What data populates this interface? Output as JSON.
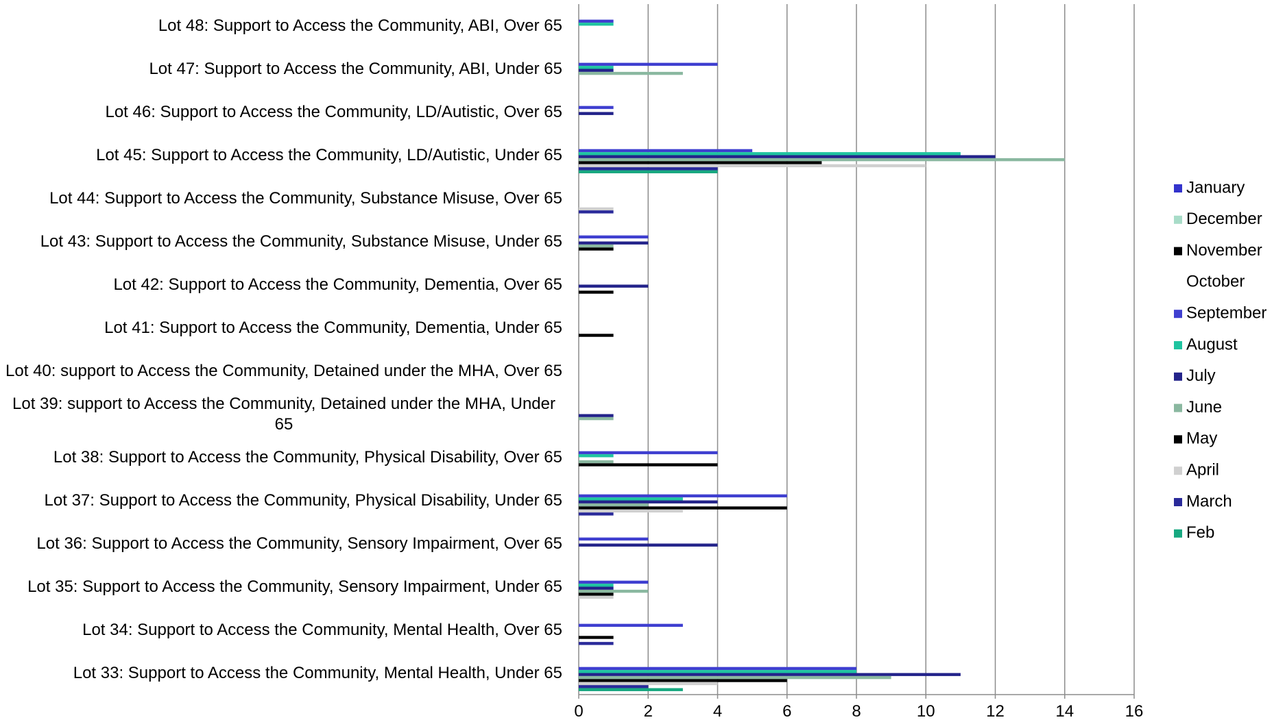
{
  "chart_data": {
    "type": "bar",
    "orientation": "horizontal",
    "categories": [
      "Lot 33: Support to Access the Community, Mental Health, Under 65",
      "Lot 34: Support to Access the Community, Mental Health, Over 65",
      "Lot 35: Support to Access the Community, Sensory Impairment, Under 65",
      "Lot 36: Support to Access the Community, Sensory Impairment, Over 65",
      "Lot 37: Support to Access the Community, Physical Disability, Under 65",
      "Lot 38: Support to Access the Community, Physical Disability, Over 65",
      "Lot 39: support to Access the Community, Detained under the MHA, Under 65",
      "Lot 40: support to Access the Community, Detained under the MHA, Over 65",
      "Lot 41: Support to Access the Community, Dementia, Under 65",
      "Lot 42: Support to Access the Community, Dementia, Over 65",
      "Lot 43: Support to Access the Community, Substance Misuse, Under 65",
      "Lot 44: Support to Access the Community, Substance Misuse, Over 65",
      "Lot 45: Support to Access the Community, LD/Autistic, Under 65",
      "Lot 46: Support to Access the Community, LD/Autistic, Over 65",
      "Lot 47: Support to Access the Community, ABI, Under 65",
      "Lot 48: Support to Access the Community, ABI, Over 65"
    ],
    "series": [
      {
        "name": "January",
        "color": "#3333cc",
        "values": [
          0,
          0,
          0,
          0,
          0,
          0,
          0,
          0,
          0,
          0,
          0,
          0,
          0,
          0,
          0,
          0
        ]
      },
      {
        "name": "December",
        "color": "#a8dcc8",
        "values": [
          0,
          0,
          0,
          0,
          0,
          0,
          0,
          0,
          0,
          0,
          0,
          0,
          0,
          0,
          0,
          0
        ]
      },
      {
        "name": "November",
        "color": "#000000",
        "values": [
          0,
          0,
          0,
          0,
          0,
          0,
          0,
          0,
          0,
          0,
          0,
          0,
          0,
          0,
          0,
          0
        ]
      },
      {
        "name": "October",
        "color": "#ffffff",
        "values": [
          0,
          0,
          0,
          0,
          0,
          0,
          0,
          0,
          0,
          0,
          0,
          0,
          0,
          0,
          0,
          0
        ]
      },
      {
        "name": "September",
        "color": "#3f3fd0",
        "values": [
          8,
          3,
          2,
          2,
          6,
          4,
          0,
          0,
          0,
          0,
          2,
          0,
          5,
          1,
          4,
          1
        ]
      },
      {
        "name": "August",
        "color": "#1fc4a0",
        "values": [
          8,
          0,
          1,
          0,
          3,
          1,
          0,
          0,
          0,
          0,
          0,
          0,
          11,
          0,
          1,
          1
        ]
      },
      {
        "name": "July",
        "color": "#23238a",
        "values": [
          11,
          0,
          1,
          4,
          4,
          0,
          1,
          0,
          0,
          2,
          2,
          0,
          12,
          1,
          1,
          0
        ]
      },
      {
        "name": "June",
        "color": "#8ab8a0",
        "values": [
          9,
          0,
          2,
          0,
          2,
          1,
          1,
          0,
          0,
          0,
          1,
          0,
          14,
          0,
          3,
          0
        ]
      },
      {
        "name": "May",
        "color": "#000000",
        "values": [
          6,
          1,
          1,
          0,
          6,
          4,
          0,
          0,
          1,
          1,
          1,
          0,
          7,
          0,
          0,
          0
        ]
      },
      {
        "name": "April",
        "color": "#d0d0d0",
        "values": [
          4,
          0,
          1,
          0,
          3,
          0,
          0,
          0,
          0,
          0,
          0,
          1,
          10,
          0,
          0,
          0
        ]
      },
      {
        "name": "March",
        "color": "#2a2a9a",
        "values": [
          2,
          1,
          0,
          0,
          1,
          0,
          0,
          0,
          0,
          0,
          0,
          1,
          4,
          0,
          0,
          0
        ]
      },
      {
        "name": "Feb",
        "color": "#17a880",
        "values": [
          3,
          0,
          0,
          0,
          0,
          0,
          0,
          0,
          0,
          0,
          0,
          0,
          4,
          0,
          0,
          0
        ]
      }
    ],
    "xlim": [
      0,
      16
    ],
    "xticks": [
      0,
      2,
      4,
      6,
      8,
      10,
      12,
      14,
      16
    ],
    "grid": true,
    "legend": "right"
  }
}
